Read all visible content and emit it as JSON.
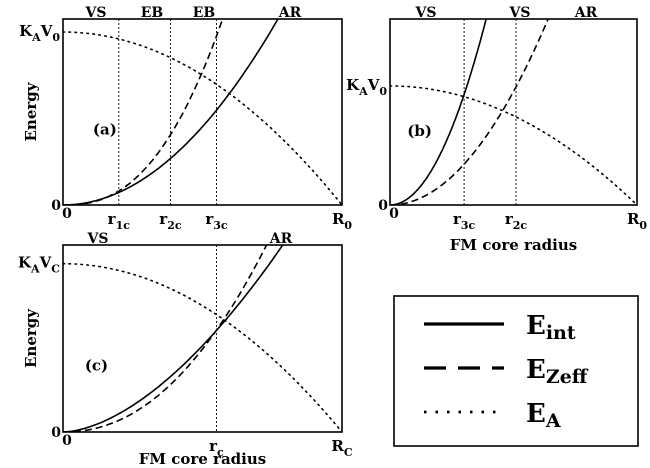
{
  "chart_data": [
    {
      "panel": "(a)",
      "type": "line",
      "ylabel": "Energy",
      "xlabel": "",
      "grid": false,
      "regions": [
        "VS",
        "EB",
        "EB",
        "AR"
      ],
      "x_ticks": [
        {
          "label": "0",
          "x": 0
        },
        {
          "label": "r",
          "sub": "1c",
          "x": 0.2
        },
        {
          "label": "r",
          "sub": "2c",
          "x": 0.385
        },
        {
          "label": "r",
          "sub": "3c",
          "x": 0.55
        },
        {
          "label": "R",
          "sub": "0",
          "x": 1.0
        }
      ],
      "y_ticks": [
        {
          "label": "0",
          "y": 0
        },
        {
          "label": "K",
          "sub": "A",
          "label2": "V",
          "sub2": "0",
          "y": 0.93
        }
      ],
      "vlines": [
        0.2,
        0.385,
        0.55
      ],
      "series": [
        {
          "style": "solid",
          "curve": "power",
          "k": 1.685,
          "p": 2.0
        },
        {
          "style": "dashed",
          "curve": "power",
          "k": 3.95,
          "p": 2.46
        },
        {
          "style": "dotted",
          "curve": "cap",
          "v0": 0.93
        }
      ],
      "xlim": [
        0,
        1
      ],
      "ylim": [
        0,
        1
      ]
    },
    {
      "panel": "(b)",
      "type": "line",
      "ylabel": "",
      "xlabel": "FM core radius",
      "grid": false,
      "regions": [
        "VS",
        "VS",
        "AR"
      ],
      "x_ticks": [
        {
          "label": "0",
          "x": 0
        },
        {
          "label": "r",
          "sub": "3c",
          "x": 0.3
        },
        {
          "label": "r",
          "sub": "2c",
          "x": 0.51
        },
        {
          "label": "R",
          "sub": "0",
          "x": 1.0
        }
      ],
      "y_ticks": [
        {
          "label": "0",
          "y": 0
        },
        {
          "label": "K",
          "sub": "A",
          "label2": "V",
          "sub2": "0",
          "y": 0.64
        }
      ],
      "vlines": [
        0.3,
        0.51
      ],
      "series": [
        {
          "style": "solid",
          "curve": "power",
          "k": 6.6,
          "p": 2.0
        },
        {
          "style": "dashed",
          "curve": "power",
          "k": 2.44,
          "p": 2.0
        },
        {
          "style": "dotted",
          "curve": "cap",
          "v0": 0.64
        }
      ],
      "xlim": [
        0,
        1
      ],
      "ylim": [
        0,
        1
      ]
    },
    {
      "panel": "(c)",
      "type": "line",
      "ylabel": "Energy",
      "xlabel": "FM core radius",
      "grid": false,
      "regions": [
        "VS",
        "AR"
      ],
      "x_ticks": [
        {
          "label": "0",
          "x": 0
        },
        {
          "label": "r",
          "sub": "c",
          "x": 0.55
        },
        {
          "label": "R",
          "sub": "C",
          "x": 1.0
        }
      ],
      "y_ticks": [
        {
          "label": "0",
          "y": 0
        },
        {
          "label": "K",
          "sub": "A",
          "label2": "V",
          "sub2": "C",
          "y": 0.9
        }
      ],
      "vlines": [
        0.55
      ],
      "series": [
        {
          "style": "solid",
          "curve": "power",
          "k": 1.5,
          "p": 1.7
        },
        {
          "style": "dashed",
          "curve": "power",
          "k": 1.97,
          "p": 2.15
        },
        {
          "style": "dotted",
          "curve": "cap",
          "v0": 0.9
        }
      ],
      "xlim": [
        0,
        1
      ],
      "ylim": [
        0,
        1
      ]
    }
  ],
  "legend": {
    "placement": "bottom-right",
    "entries": [
      {
        "style": "solid",
        "label": "E",
        "sub": "int"
      },
      {
        "style": "dashed",
        "label": "E",
        "sub": "Zeff"
      },
      {
        "style": "dotted",
        "label": "E",
        "sub": "A"
      }
    ]
  }
}
